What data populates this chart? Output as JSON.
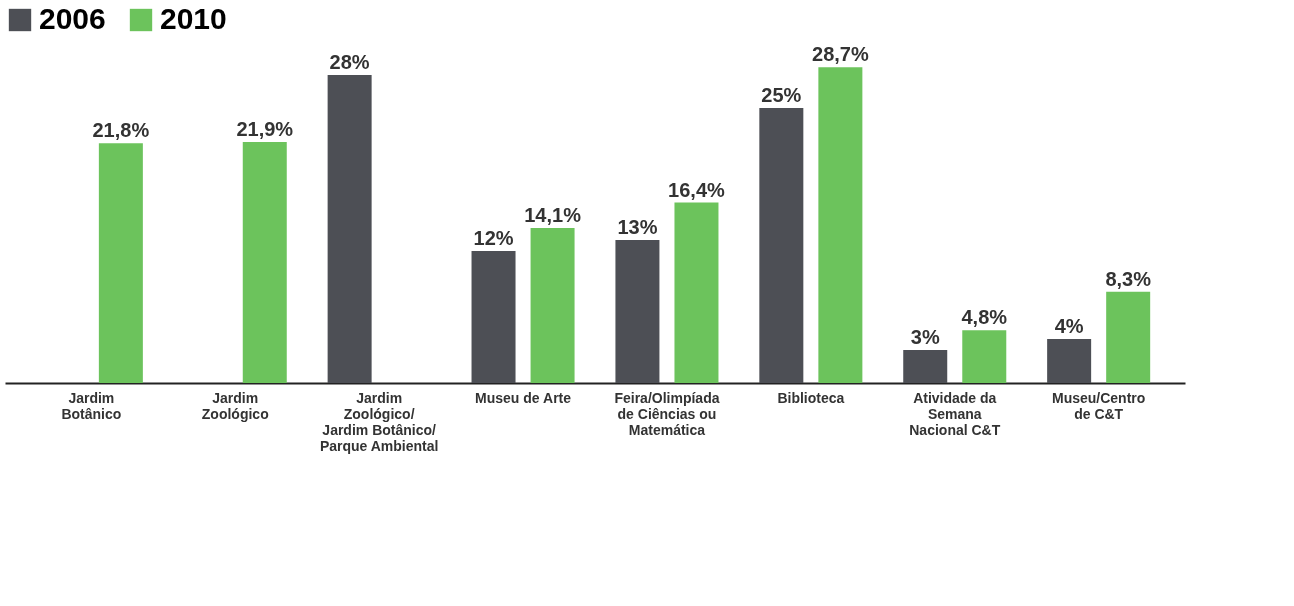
{
  "chart_data": {
    "type": "bar",
    "categories": [
      "Jardim\nBotânico",
      "Jardim\nZoológico",
      "Jardim\nZoológico/\nJardim Botânico/\nParque Ambiental",
      "Museu de Arte",
      "Feira/Olimpíada\nde Ciências ou\nMatemática",
      "Biblioteca",
      "Atividade da\nSemana\nNacional C&T",
      "Museu/Centro\nde C&T"
    ],
    "series": [
      {
        "name": "2006",
        "color": "#4d4f55",
        "values": [
          null,
          null,
          28,
          12,
          13,
          25,
          3,
          4
        ],
        "value_labels": [
          null,
          null,
          "28%",
          "12%",
          "13%",
          "25%",
          "3%",
          "4%"
        ]
      },
      {
        "name": "2010",
        "color": "#6cc35c",
        "values": [
          21.8,
          21.9,
          null,
          14.1,
          16.4,
          28.7,
          4.8,
          8.3
        ],
        "value_labels": [
          "21,8%",
          "21,9%",
          null,
          "14,1%",
          "16,4%",
          "28,7%",
          "4,8%",
          "8,3%"
        ]
      }
    ],
    "legend": "top left",
    "grid": false
  }
}
